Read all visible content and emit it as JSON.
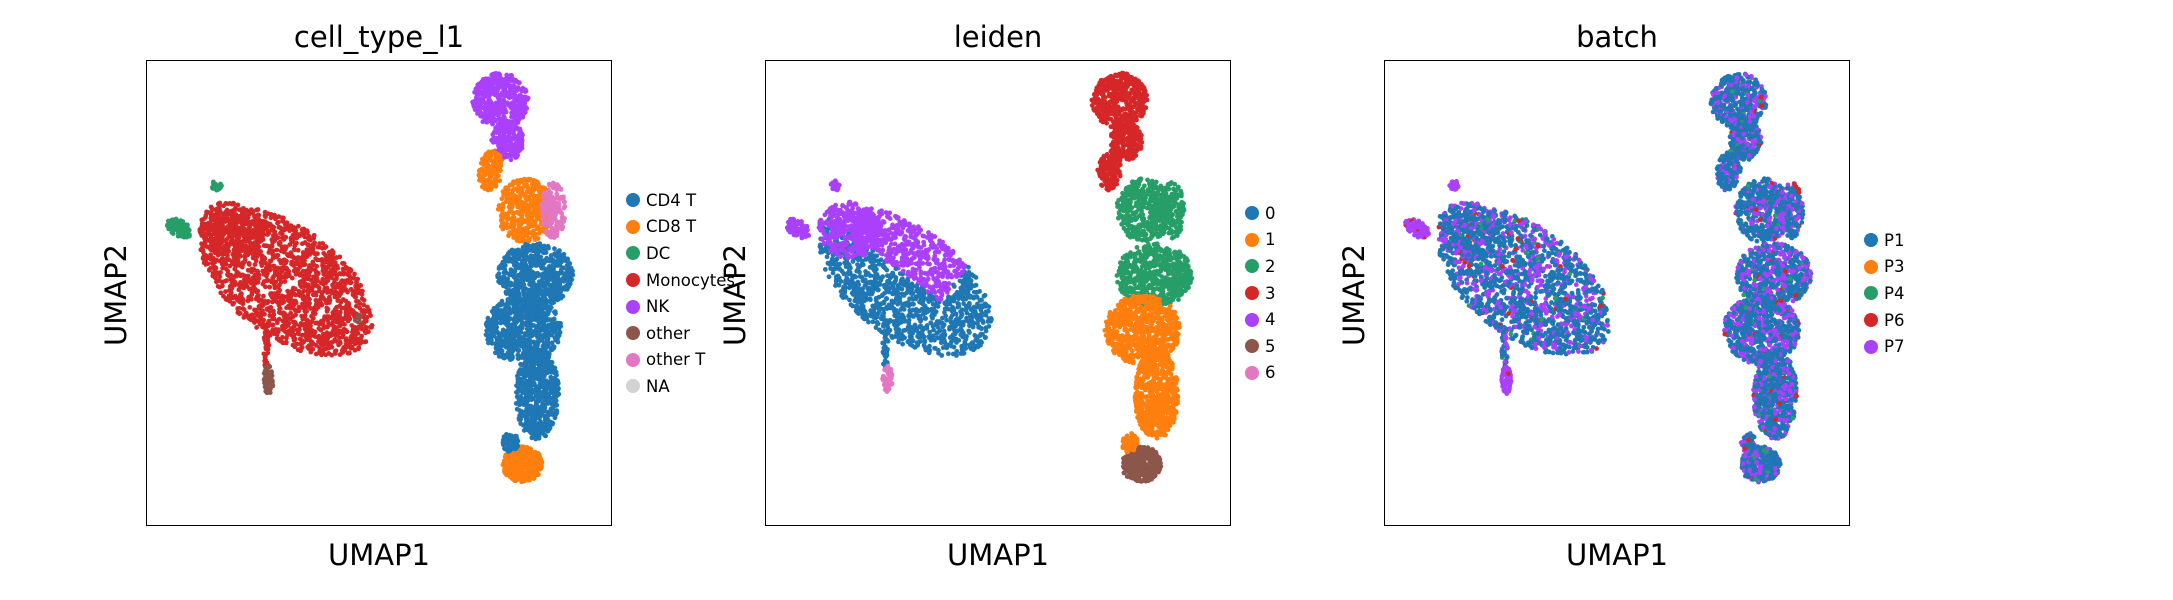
{
  "chart_data": [
    {
      "type": "scatter",
      "title": "cell_type_l1",
      "xlabel": "UMAP1",
      "ylabel": "UMAP2",
      "legend": [
        "CD4 T",
        "CD8 T",
        "DC",
        "Monocytes",
        "NK",
        "other",
        "other T",
        "NA"
      ],
      "legend_colors": [
        "#1f77b4",
        "#ff7f0e",
        "#279e68",
        "#d62728",
        "#aa40fc",
        "#8c564b",
        "#e377c2",
        "#d3d3d3"
      ],
      "legend_placement": "right",
      "grid": false
    },
    {
      "type": "scatter",
      "title": "leiden",
      "xlabel": "UMAP1",
      "ylabel": "UMAP2",
      "legend": [
        "0",
        "1",
        "2",
        "3",
        "4",
        "5",
        "6"
      ],
      "legend_colors": [
        "#1f77b4",
        "#ff7f0e",
        "#279e68",
        "#d62728",
        "#aa40fc",
        "#8c564b",
        "#e377c2"
      ],
      "legend_placement": "right",
      "grid": false
    },
    {
      "type": "scatter",
      "title": "batch",
      "xlabel": "UMAP1",
      "ylabel": "UMAP2",
      "legend": [
        "P1",
        "P3",
        "P4",
        "P6",
        "P7"
      ],
      "legend_colors": [
        "#1f77b4",
        "#ff7f0e",
        "#279e68",
        "#d62728",
        "#aa40fc"
      ],
      "legend_placement": "right",
      "grid": false
    }
  ]
}
